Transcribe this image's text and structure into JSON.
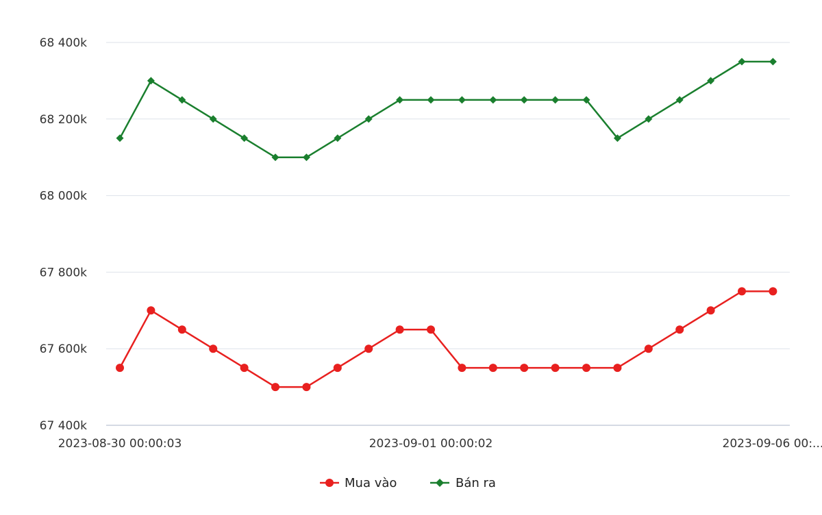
{
  "chart_data": {
    "type": "line",
    "title": "",
    "xlabel": "",
    "ylabel": "",
    "x_tick_labels": [
      "2023-08-30 00:00:03",
      "2023-09-01 00:00:02",
      "2023-09-06 00:..."
    ],
    "x_tick_indices": [
      0,
      10,
      21
    ],
    "y_ticks": [
      67400,
      67600,
      67800,
      68000,
      68200,
      68400
    ],
    "y_tick_labels": [
      "67 400k",
      "67 600k",
      "67 800k",
      "68 000k",
      "68 200k",
      "68 400k"
    ],
    "ylim": [
      67400,
      68400
    ],
    "grid": true,
    "legend_position": "bottom-center",
    "series": [
      {
        "name": "Mua vào",
        "color": "#e8201f",
        "marker": "circle",
        "values": [
          67550,
          67700,
          67650,
          67600,
          67550,
          67500,
          67500,
          67550,
          67600,
          67650,
          67650,
          67550,
          67550,
          67550,
          67550,
          67550,
          67550,
          67600,
          67650,
          67700,
          67750,
          67750
        ]
      },
      {
        "name": "Bán ra",
        "color": "#1a7f2e",
        "marker": "diamond",
        "values": [
          68150,
          68300,
          68250,
          68200,
          68150,
          68100,
          68100,
          68150,
          68200,
          68250,
          68250,
          68250,
          68250,
          68250,
          68250,
          68250,
          68150,
          68200,
          68250,
          68300,
          68350,
          68350
        ]
      }
    ]
  }
}
